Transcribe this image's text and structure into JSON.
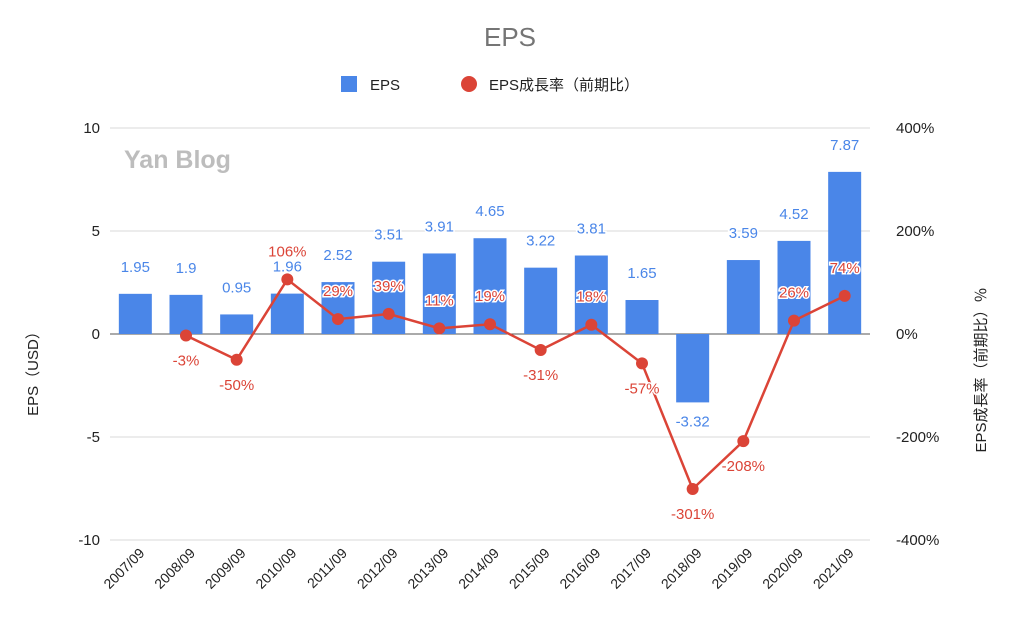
{
  "chart_data": {
    "type": "bar",
    "title": "EPS",
    "categories": [
      "2007/09",
      "2008/09",
      "2009/09",
      "2010/09",
      "2011/09",
      "2012/09",
      "2013/09",
      "2014/09",
      "2015/09",
      "2016/09",
      "2017/09",
      "2018/09",
      "2019/09",
      "2020/09",
      "2021/09"
    ],
    "series": [
      {
        "name": "EPS",
        "type": "bar",
        "axis": "left",
        "color": "#4a86e8",
        "values": [
          1.95,
          1.9,
          0.95,
          1.96,
          2.52,
          3.51,
          3.91,
          4.65,
          3.22,
          3.81,
          1.65,
          -3.32,
          3.59,
          4.52,
          7.87
        ],
        "labels": [
          "1.95",
          "1.9",
          "0.95",
          "1.96",
          "2.52",
          "3.51",
          "3.91",
          "4.65",
          "3.22",
          "3.81",
          "1.65",
          "-3.32",
          "3.59",
          "4.52",
          "7.87"
        ]
      },
      {
        "name": "EPS成長率（前期比）",
        "type": "line",
        "axis": "right",
        "color": "#db4437",
        "values": [
          null,
          -3,
          -50,
          106,
          29,
          39,
          11,
          19,
          -31,
          18,
          -57,
          -301,
          -208,
          26,
          74
        ],
        "labels": [
          "",
          "-3%",
          "-50%",
          "106%",
          "29%",
          "39%",
          "11%",
          "19%",
          "-31%",
          "18%",
          "-57%",
          "-301%",
          "-208%",
          "26%",
          "74%"
        ]
      }
    ],
    "left_axis": {
      "label": "EPS（USD）",
      "ylim": [
        -10,
        10
      ],
      "ticks": [
        10,
        5,
        0,
        -5,
        -10
      ],
      "tick_labels": [
        "10",
        "5",
        "0",
        "-5",
        "-10"
      ]
    },
    "right_axis": {
      "label": "EPS成長率（前期比）％",
      "ylim": [
        -400,
        400
      ],
      "ticks": [
        400,
        200,
        0,
        -200,
        -400
      ],
      "tick_labels": [
        "400%",
        "200%",
        "0%",
        "-200%",
        "-400%"
      ]
    },
    "legend_position": "top-center",
    "grid": true,
    "watermark": "Yan Blog"
  }
}
